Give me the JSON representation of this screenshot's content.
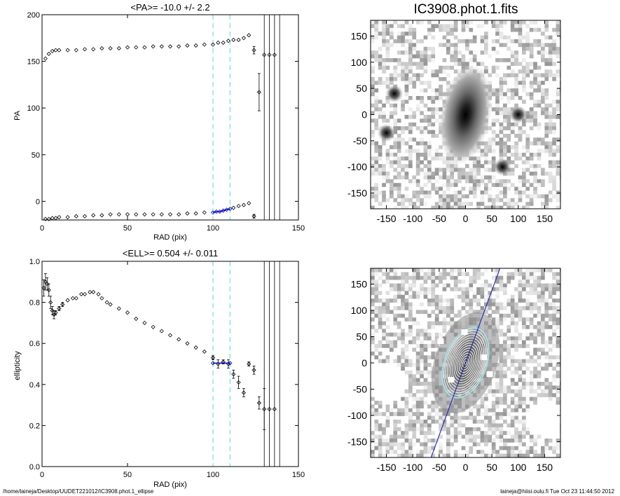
{
  "footer": {
    "path": "/home/laineja/Desktop/UUDET221012/IC3908.phot.1_ellipse",
    "stamp": "laineja@hiisi.oulu.fi  Tue Oct 23 11:44:50 2012"
  },
  "chart_data": [
    {
      "type": "scatter",
      "title": "<PA>= -10.0 +/-   2.2",
      "xlabel": "RAD (pix)",
      "ylabel": "PA",
      "xlim": [
        0,
        150
      ],
      "ylim": [
        -20,
        200
      ],
      "xticks": [
        0,
        50,
        100,
        150
      ],
      "yticks": [
        0,
        50,
        100,
        150,
        200
      ],
      "grid": false,
      "mean_lines_x": [
        100,
        110
      ],
      "limit_lines_x": [
        130,
        133,
        136,
        139
      ],
      "series": [
        {
          "role": "pa-main",
          "color": "#000000",
          "x": [
            2,
            4,
            6,
            8,
            10,
            15,
            20,
            25,
            30,
            35,
            40,
            45,
            50,
            55,
            60,
            65,
            70,
            75,
            80,
            85,
            90,
            95,
            100,
            103,
            106,
            109,
            112,
            115,
            118,
            121,
            124,
            127,
            130,
            133,
            136
          ],
          "y": [
            153,
            158,
            161,
            162,
            162,
            162,
            162,
            163,
            163,
            164,
            164,
            164,
            165,
            165,
            165,
            166,
            166,
            166,
            166,
            167,
            167,
            168,
            168,
            170,
            170,
            172,
            173,
            173,
            175,
            178,
            162,
            117,
            157,
            157,
            157
          ],
          "err": [
            0,
            0,
            0,
            0,
            0,
            0,
            0,
            0,
            0,
            0,
            0,
            0,
            0,
            0,
            0,
            0,
            0,
            0,
            0,
            0,
            0,
            0,
            0,
            0,
            0,
            0,
            0,
            0,
            0,
            0,
            4,
            20,
            0,
            0,
            0
          ]
        },
        {
          "role": "pa-wrapped",
          "color": "#000000",
          "x": [
            2,
            4,
            6,
            8,
            10,
            15,
            20,
            25,
            30,
            35,
            40,
            45,
            50,
            55,
            60,
            65,
            70,
            75,
            80,
            85,
            90,
            95,
            112,
            115,
            118,
            121,
            124
          ],
          "y": [
            -19,
            -19,
            -18,
            -18,
            -17,
            -17,
            -16,
            -16,
            -15,
            -15,
            -14,
            -14,
            -14,
            -14,
            -14,
            -14,
            -14,
            -14,
            -14,
            -13,
            -13,
            -12,
            -7,
            -5,
            -4,
            -2,
            -16
          ],
          "err": [
            0,
            0,
            0,
            0,
            0,
            0,
            0,
            0,
            0,
            0,
            0,
            0,
            0,
            0,
            0,
            0,
            0,
            0,
            0,
            0,
            0,
            0,
            0,
            0,
            0,
            0,
            2
          ]
        },
        {
          "role": "pa-fit",
          "color": "#0000c0",
          "x": [
            100,
            102,
            104,
            106,
            108,
            110
          ],
          "y": [
            -12,
            -11,
            -11,
            -10,
            -9,
            -8
          ],
          "err": [
            0,
            0,
            0,
            0,
            0,
            0
          ]
        }
      ]
    },
    {
      "type": "scatter",
      "title": "<ELL>= 0.504 +/-  0.011",
      "xlabel": "RAD (pix)",
      "ylabel": "ellipticity",
      "xlim": [
        0,
        150
      ],
      "ylim": [
        0.0,
        1.0
      ],
      "xticks": [
        0,
        50,
        100,
        150
      ],
      "yticks": [
        0.0,
        0.2,
        0.4,
        0.6,
        0.8,
        1.0
      ],
      "ytick_labels": [
        "0.0",
        "0.2",
        "0.4",
        "0.6",
        "0.8",
        "1.0"
      ],
      "grid": false,
      "mean_lines_x": [
        100,
        110
      ],
      "limit_lines_x": [
        130,
        133,
        136,
        139
      ],
      "series": [
        {
          "role": "ell-main",
          "color": "#000000",
          "x": [
            1,
            2,
            3,
            4,
            5,
            6,
            7,
            8,
            10,
            12,
            15,
            18,
            20,
            23,
            25,
            28,
            30,
            33,
            35,
            38,
            40,
            45,
            50,
            55,
            60,
            65,
            70,
            75,
            80,
            85,
            90,
            95,
            100,
            103,
            106,
            109,
            112,
            115,
            118,
            121,
            124,
            127,
            130,
            133,
            136
          ],
          "y": [
            0.87,
            0.9,
            0.89,
            0.86,
            0.8,
            0.76,
            0.74,
            0.75,
            0.77,
            0.79,
            0.81,
            0.82,
            0.82,
            0.84,
            0.84,
            0.85,
            0.85,
            0.84,
            0.82,
            0.8,
            0.79,
            0.77,
            0.75,
            0.72,
            0.7,
            0.68,
            0.66,
            0.64,
            0.62,
            0.6,
            0.58,
            0.56,
            0.53,
            0.5,
            0.51,
            0.5,
            0.45,
            0.41,
            0.36,
            0.5,
            0.47,
            0.31,
            0.28,
            0.28,
            0.28
          ],
          "err": [
            0.04,
            0.04,
            0.03,
            0.03,
            0.03,
            0.02,
            0.02,
            0.01,
            0.01,
            0.01,
            0,
            0,
            0,
            0,
            0,
            0,
            0,
            0,
            0,
            0,
            0,
            0,
            0,
            0,
            0,
            0,
            0,
            0,
            0,
            0,
            0,
            0,
            0.01,
            0.02,
            0.01,
            0.02,
            0.02,
            0.03,
            0.02,
            0.01,
            0.02,
            0.03,
            0.1,
            0,
            0
          ]
        },
        {
          "role": "ell-fit",
          "color": "#0000c0",
          "x": [
            100,
            110
          ],
          "y": [
            0.504,
            0.504
          ],
          "err": [
            0,
            0
          ]
        }
      ]
    },
    {
      "type": "heatmap",
      "title": "IC3908.phot.1.fits",
      "xlim": [
        -180,
        180
      ],
      "ylim": [
        -180,
        180
      ],
      "xticks": [
        -150,
        -100,
        -50,
        0,
        50,
        100,
        150
      ],
      "yticks": [
        -150,
        -100,
        -50,
        0,
        50,
        100,
        150
      ],
      "colormap": "gray-inverted",
      "galaxy": {
        "center": [
          0,
          0
        ],
        "semi_major": 60,
        "axis_ratio": 0.5,
        "pa_deg": -10
      },
      "companions": [
        {
          "x": -150,
          "y": -35
        },
        {
          "x": 70,
          "y": -100
        },
        {
          "x": -135,
          "y": 40
        },
        {
          "x": 100,
          "y": 0
        }
      ]
    },
    {
      "type": "heatmap",
      "title": "",
      "xlim": [
        -180,
        180
      ],
      "ylim": [
        -180,
        180
      ],
      "xticks": [
        -150,
        -100,
        -50,
        0,
        50,
        100,
        150
      ],
      "yticks": [
        -150,
        -100,
        -50,
        0,
        50,
        100,
        150
      ],
      "colormap": "gray-inverted",
      "contour_axis_ratio": 0.5,
      "contour_semi_majors": [
        4,
        9,
        14,
        19,
        24,
        29,
        34,
        39,
        44,
        49,
        54,
        59,
        64,
        69
      ],
      "highlight_semi_major": 69,
      "major_axis_color": "#2020c0",
      "highlight_color": "#9ee6ec"
    }
  ]
}
